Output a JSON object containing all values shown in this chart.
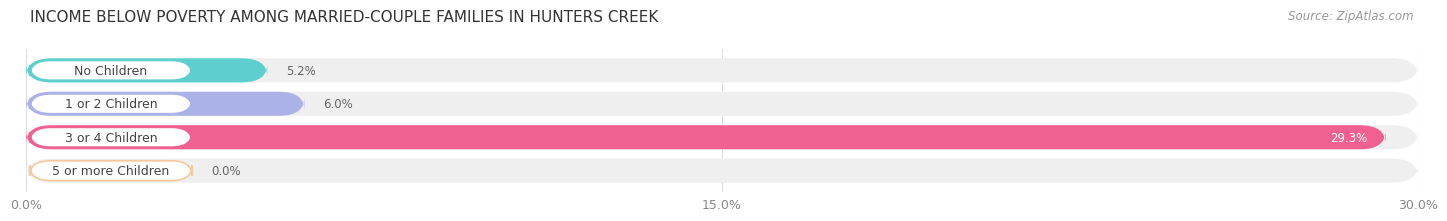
{
  "title": "INCOME BELOW POVERTY AMONG MARRIED-COUPLE FAMILIES IN HUNTERS CREEK",
  "source": "Source: ZipAtlas.com",
  "categories": [
    "No Children",
    "1 or 2 Children",
    "3 or 4 Children",
    "5 or more Children"
  ],
  "values": [
    5.2,
    6.0,
    29.3,
    0.0
  ],
  "bar_colors": [
    "#5ecfcf",
    "#aab2e8",
    "#f06090",
    "#f5c99a"
  ],
  "xlim": [
    0,
    30.0
  ],
  "xticks": [
    0.0,
    15.0,
    30.0
  ],
  "xtick_labels": [
    "0.0%",
    "15.0%",
    "30.0%"
  ],
  "background_color": "#ffffff",
  "bar_background_color": "#efefef",
  "title_fontsize": 11,
  "source_fontsize": 8.5,
  "bar_height": 0.72,
  "label_fontsize": 9,
  "value_label_fontsize": 8.5
}
